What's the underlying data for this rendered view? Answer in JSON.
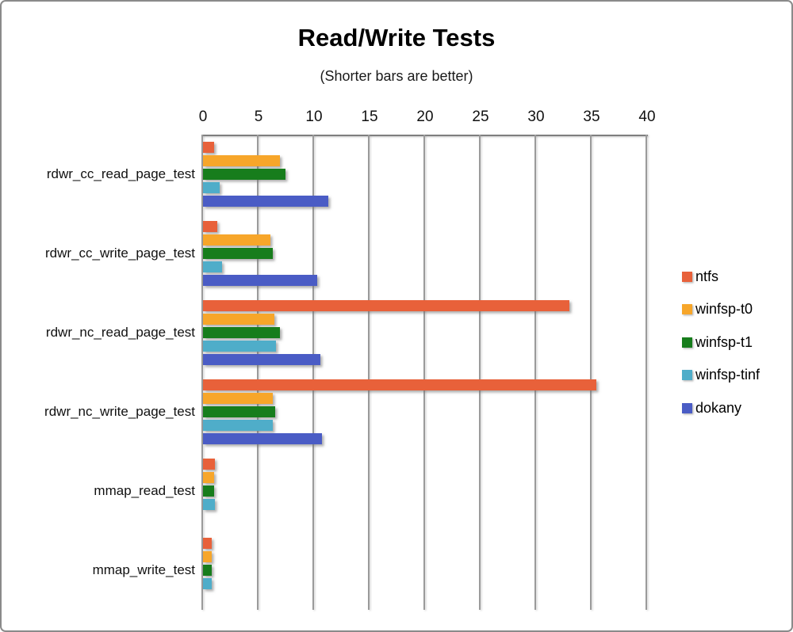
{
  "frame": {
    "background": "#ffffff",
    "border_color": "#8a8a8a"
  },
  "chart_data": {
    "type": "bar",
    "orientation": "horizontal",
    "title": "Read/Write Tests",
    "subtitle": "(Shorter bars are better)",
    "value_axis": {
      "position": "top",
      "min": 0,
      "max": 40,
      "tick_interval": 5,
      "ticks": [
        0,
        5,
        10,
        15,
        20,
        25,
        30,
        35,
        40
      ]
    },
    "grid": true,
    "categories": [
      "rdwr_cc_read_page_test",
      "rdwr_cc_write_page_test",
      "rdwr_nc_read_page_test",
      "rdwr_nc_write_page_test",
      "mmap_read_test",
      "mmap_write_test"
    ],
    "series": [
      {
        "name": "ntfs",
        "color": "#E8613A",
        "values": [
          1.0,
          1.25,
          33.0,
          35.4,
          1.1,
          0.75
        ]
      },
      {
        "name": "winfsp-t0",
        "color": "#F7A62A",
        "values": [
          6.9,
          6.1,
          6.4,
          6.3,
          1.0,
          0.75
        ]
      },
      {
        "name": "winfsp-t1",
        "color": "#177D1C",
        "values": [
          7.4,
          6.3,
          6.9,
          6.5,
          1.0,
          0.8
        ]
      },
      {
        "name": "winfsp-tinf",
        "color": "#4FADC9",
        "values": [
          1.5,
          1.7,
          6.6,
          6.3,
          1.05,
          0.8
        ]
      },
      {
        "name": "dokany",
        "color": "#4A5CC5",
        "values": [
          11.3,
          10.3,
          10.6,
          10.7,
          0,
          0
        ]
      }
    ],
    "legend": {
      "position": "right",
      "entries": [
        "ntfs",
        "winfsp-t0",
        "winfsp-t1",
        "winfsp-tinf",
        "dokany"
      ]
    }
  }
}
